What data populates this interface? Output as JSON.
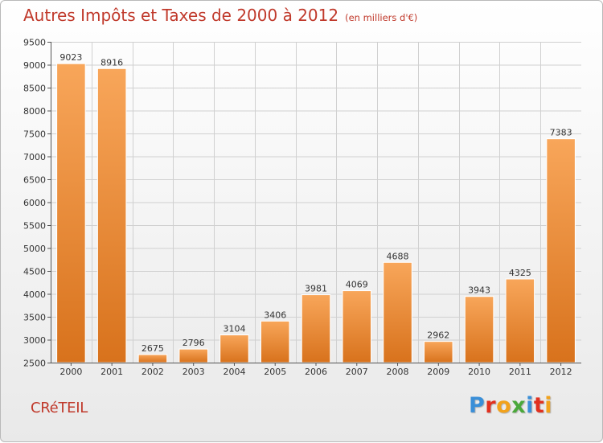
{
  "chart_data": {
    "type": "bar",
    "title": "Autres Impôts et Taxes de 2000 à 2012",
    "subtitle": "(en milliers d'€)",
    "categories": [
      "2000",
      "2001",
      "2002",
      "2003",
      "2004",
      "2005",
      "2006",
      "2007",
      "2008",
      "2009",
      "2010",
      "2011",
      "2012"
    ],
    "values": [
      9023,
      8916,
      2675,
      2796,
      3104,
      3406,
      3981,
      4069,
      4688,
      2962,
      3943,
      4325,
      7383
    ],
    "ylim": [
      2500,
      9500
    ],
    "yticks": [
      2500,
      3000,
      3500,
      4000,
      4500,
      5000,
      5500,
      6000,
      6500,
      7000,
      7500,
      8000,
      8500,
      9000,
      9500
    ],
    "xlabel": "",
    "ylabel": "",
    "grid": true,
    "bar_color_top": "#f8a65a",
    "bar_color_bottom": "#d8721c"
  },
  "footer": {
    "commune": "CRéTEIL",
    "brand": "Proxiti",
    "brand_colors": [
      "#3a8fd8",
      "#e2301f",
      "#f2a21b",
      "#4aa83a",
      "#3a8fd8",
      "#e2301f",
      "#f2a21b"
    ]
  }
}
